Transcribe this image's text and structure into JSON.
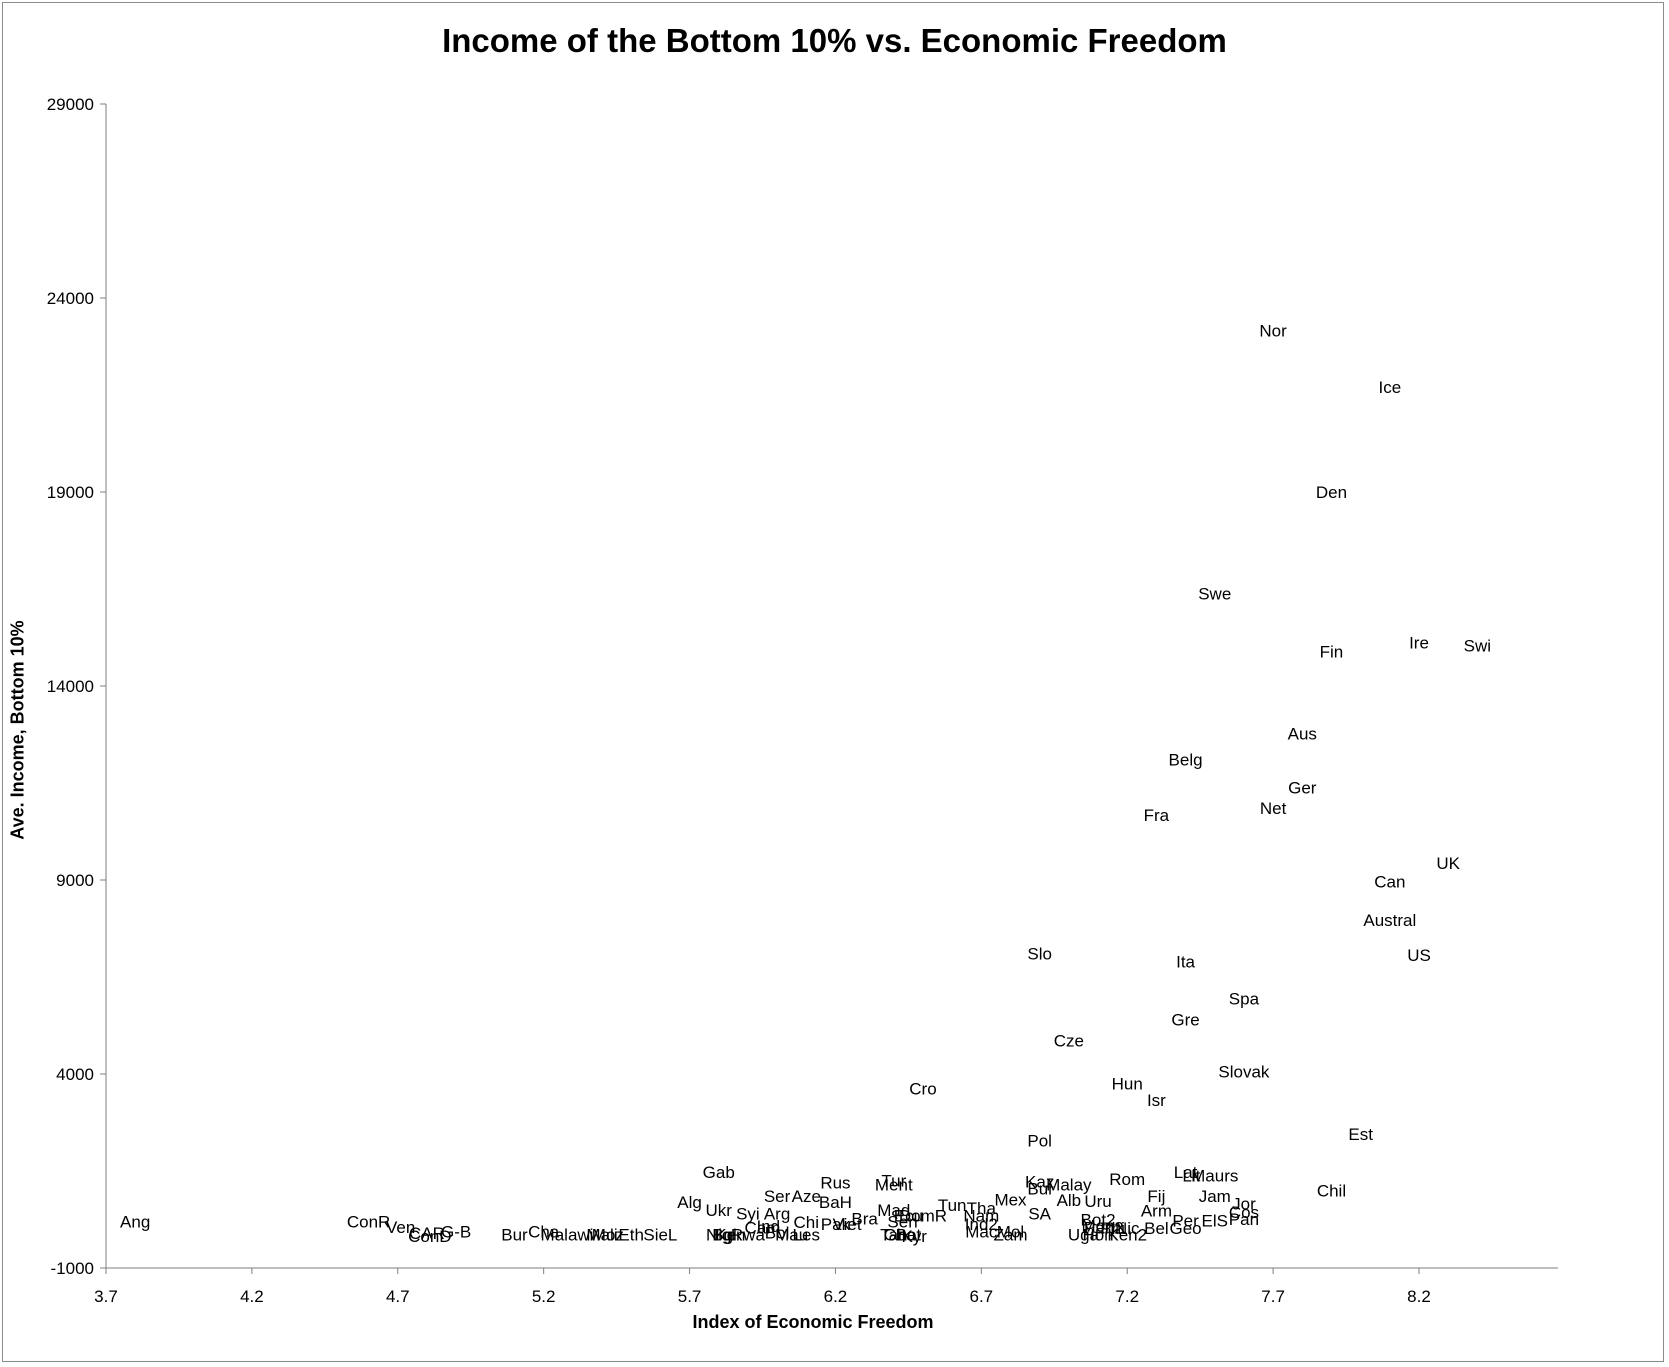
{
  "chart_data": {
    "type": "scatter",
    "title": "Income of the Bottom 10% vs. Economic Freedom",
    "xlabel": "Index of Economic Freedom",
    "ylabel": "Ave. Income, Bottom 10%",
    "xlim": [
      3.7,
      8.5
    ],
    "ylim": [
      -1000,
      29000
    ],
    "x_ticks": [
      "3.7",
      "4.2",
      "4.7",
      "5.2",
      "5.7",
      "6.2",
      "6.7",
      "7.2",
      "7.7",
      "8.2"
    ],
    "y_ticks": [
      "-1000",
      "4000",
      "9000",
      "14000",
      "19000",
      "24000",
      "29000"
    ],
    "grid": false,
    "legend": "none",
    "marker": "none (data labels only)",
    "points": [
      {
        "label": "Ang",
        "x": 3.8,
        "y": 200
      },
      {
        "label": "ConR",
        "x": 4.6,
        "y": 200
      },
      {
        "label": "Ven",
        "x": 4.71,
        "y": 60
      },
      {
        "label": "CAR",
        "x": 4.8,
        "y": -100
      },
      {
        "label": "ConD",
        "x": 4.81,
        "y": -180
      },
      {
        "label": "G-B",
        "x": 4.9,
        "y": -60
      },
      {
        "label": "Bur",
        "x": 5.1,
        "y": -140
      },
      {
        "label": "Cha",
        "x": 5.2,
        "y": -60
      },
      {
        "label": "Malawi",
        "x": 5.28,
        "y": -140
      },
      {
        "label": "Mali",
        "x": 5.4,
        "y": -140
      },
      {
        "label": "Moz",
        "x": 5.42,
        "y": -140
      },
      {
        "label": "Eth",
        "x": 5.5,
        "y": -140
      },
      {
        "label": "SieL",
        "x": 5.6,
        "y": -140
      },
      {
        "label": "Gab",
        "x": 5.8,
        "y": 1480
      },
      {
        "label": "Alg",
        "x": 5.7,
        "y": 700
      },
      {
        "label": "Ukr",
        "x": 5.8,
        "y": 500
      },
      {
        "label": "Syi",
        "x": 5.9,
        "y": 400
      },
      {
        "label": "Arg",
        "x": 6.0,
        "y": 400
      },
      {
        "label": "Ser",
        "x": 6.0,
        "y": 860
      },
      {
        "label": "Aze",
        "x": 6.1,
        "y": 860
      },
      {
        "label": "Rus",
        "x": 6.2,
        "y": 1200
      },
      {
        "label": "BaH",
        "x": 6.2,
        "y": 700
      },
      {
        "label": "Tur",
        "x": 6.4,
        "y": 1250
      },
      {
        "label": "Ment",
        "x": 6.4,
        "y": 1150
      },
      {
        "label": "Mad",
        "x": 6.4,
        "y": 500
      },
      {
        "label": "Cro",
        "x": 6.5,
        "y": 3630
      },
      {
        "label": "Nig",
        "x": 5.8,
        "y": -140
      },
      {
        "label": "Bgl",
        "x": 5.82,
        "y": -140
      },
      {
        "label": "Ken",
        "x": 5.84,
        "y": -140
      },
      {
        "label": "Rwa",
        "x": 5.9,
        "y": -140
      },
      {
        "label": "Cam",
        "x": 5.95,
        "y": 50
      },
      {
        "label": "Ind",
        "x": 5.97,
        "y": 80
      },
      {
        "label": "Bol",
        "x": 6.0,
        "y": -80
      },
      {
        "label": "Mau",
        "x": 6.05,
        "y": -140
      },
      {
        "label": "Les",
        "x": 6.1,
        "y": -140
      },
      {
        "label": "Chi",
        "x": 6.1,
        "y": 180
      },
      {
        "label": "Pak",
        "x": 6.2,
        "y": 130
      },
      {
        "label": "Viet",
        "x": 6.24,
        "y": 130
      },
      {
        "label": "Bra",
        "x": 6.3,
        "y": 280
      },
      {
        "label": "Tan",
        "x": 6.4,
        "y": -140
      },
      {
        "label": "Gha",
        "x": 6.42,
        "y": -140
      },
      {
        "label": "Bot",
        "x": 6.45,
        "y": -140
      },
      {
        "label": "Kyr",
        "x": 6.47,
        "y": -180
      },
      {
        "label": "Ecu",
        "x": 6.45,
        "y": 350
      },
      {
        "label": "Sen",
        "x": 6.43,
        "y": 200
      },
      {
        "label": "DomR",
        "x": 6.5,
        "y": 350
      },
      {
        "label": "Tun",
        "x": 6.6,
        "y": 620
      },
      {
        "label": "Tha",
        "x": 6.7,
        "y": 550
      },
      {
        "label": "Nam",
        "x": 6.7,
        "y": 350
      },
      {
        "label": "Ind2",
        "x": 6.7,
        "y": 140
      },
      {
        "label": "Mac",
        "x": 6.7,
        "y": -60
      },
      {
        "label": "Mol",
        "x": 6.8,
        "y": -60
      },
      {
        "label": "Zam",
        "x": 6.8,
        "y": -140
      },
      {
        "label": "Mex",
        "x": 6.8,
        "y": 760
      },
      {
        "label": "SA",
        "x": 6.9,
        "y": 400
      },
      {
        "label": "Kaz",
        "x": 6.9,
        "y": 1230
      },
      {
        "label": "Bul",
        "x": 6.9,
        "y": 1050
      },
      {
        "label": "Malay",
        "x": 7.0,
        "y": 1150
      },
      {
        "label": "Alb",
        "x": 7.0,
        "y": 750
      },
      {
        "label": "Uru",
        "x": 7.1,
        "y": 730
      },
      {
        "label": "Rom",
        "x": 7.2,
        "y": 1300
      },
      {
        "label": "Pol",
        "x": 6.9,
        "y": 2280
      },
      {
        "label": "Slo",
        "x": 6.9,
        "y": 7100
      },
      {
        "label": "Cze",
        "x": 7.0,
        "y": 4860
      },
      {
        "label": "Hun",
        "x": 7.2,
        "y": 3760
      },
      {
        "label": "Isr",
        "x": 7.3,
        "y": 3330
      },
      {
        "label": "Bot2",
        "x": 7.1,
        "y": 250
      },
      {
        "label": "Mon",
        "x": 7.1,
        "y": 100
      },
      {
        "label": "Pan2",
        "x": 7.12,
        "y": 40
      },
      {
        "label": "Phi",
        "x": 7.15,
        "y": 30
      },
      {
        "label": "Nic",
        "x": 7.2,
        "y": 30
      },
      {
        "label": "Bel",
        "x": 7.3,
        "y": 30
      },
      {
        "label": "Geo",
        "x": 7.4,
        "y": 30
      },
      {
        "label": "Uga",
        "x": 7.05,
        "y": -140
      },
      {
        "label": "Hon",
        "x": 7.1,
        "y": -140
      },
      {
        "label": "Ken2",
        "x": 7.2,
        "y": -140
      },
      {
        "label": "Arm",
        "x": 7.3,
        "y": 480
      },
      {
        "label": "Fij",
        "x": 7.3,
        "y": 860
      },
      {
        "label": "Per",
        "x": 7.4,
        "y": 230
      },
      {
        "label": "ElS",
        "x": 7.5,
        "y": 230
      },
      {
        "label": "Jam",
        "x": 7.5,
        "y": 860
      },
      {
        "label": "Jor",
        "x": 7.6,
        "y": 660
      },
      {
        "label": "Cos",
        "x": 7.6,
        "y": 440
      },
      {
        "label": "Pan",
        "x": 7.6,
        "y": 260
      },
      {
        "label": "Lat",
        "x": 7.4,
        "y": 1470
      },
      {
        "label": "Lit",
        "x": 7.42,
        "y": 1380
      },
      {
        "label": "Maurs",
        "x": 7.5,
        "y": 1380
      },
      {
        "label": "Chil",
        "x": 7.9,
        "y": 1000
      },
      {
        "label": "Est",
        "x": 8.0,
        "y": 2460
      },
      {
        "label": "Slovak",
        "x": 7.6,
        "y": 4070
      },
      {
        "label": "Gre",
        "x": 7.4,
        "y": 5410
      },
      {
        "label": "Spa",
        "x": 7.6,
        "y": 5940
      },
      {
        "label": "Ita",
        "x": 7.4,
        "y": 6900
      },
      {
        "label": "US",
        "x": 8.2,
        "y": 7070
      },
      {
        "label": "Austral",
        "x": 8.1,
        "y": 7970
      },
      {
        "label": "Can",
        "x": 8.1,
        "y": 8960
      },
      {
        "label": "UK",
        "x": 8.3,
        "y": 9440
      },
      {
        "label": "Fra",
        "x": 7.3,
        "y": 10680
      },
      {
        "label": "Net",
        "x": 7.7,
        "y": 10860
      },
      {
        "label": "Ger",
        "x": 7.8,
        "y": 11380
      },
      {
        "label": "Belg",
        "x": 7.4,
        "y": 12100
      },
      {
        "label": "Aus",
        "x": 7.8,
        "y": 12770
      },
      {
        "label": "Fin",
        "x": 7.9,
        "y": 14890
      },
      {
        "label": "Ire",
        "x": 8.2,
        "y": 15120
      },
      {
        "label": "Swi",
        "x": 8.4,
        "y": 15040
      },
      {
        "label": "Swe",
        "x": 7.5,
        "y": 16380
      },
      {
        "label": "Den",
        "x": 7.9,
        "y": 19000
      },
      {
        "label": "Ice",
        "x": 8.1,
        "y": 21700
      },
      {
        "label": "Nor",
        "x": 7.7,
        "y": 23160
      }
    ]
  }
}
